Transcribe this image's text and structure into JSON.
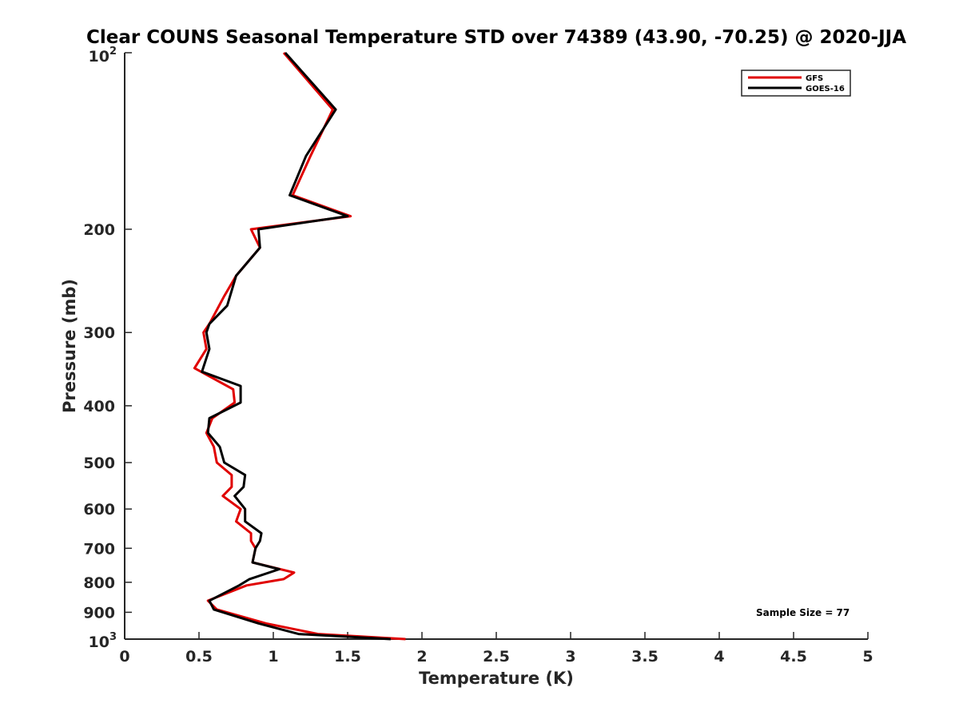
{
  "chart_data": {
    "type": "line",
    "title": "Clear COUNS Seasonal Temperature STD over 74389 (43.90, -70.25) @ 2020-JJA",
    "xlabel": "Temperature (K)",
    "ylabel": "Pressure (mb)",
    "xlim": [
      0,
      5
    ],
    "ylim": [
      100,
      1000
    ],
    "yscale": "log",
    "y_reversed": true,
    "x_ticks": [
      0,
      0.5,
      1,
      1.5,
      2,
      2.5,
      3,
      3.5,
      4,
      4.5,
      5
    ],
    "x_tick_labels": [
      "0",
      "0.5",
      "1",
      "1.5",
      "2",
      "2.5",
      "3",
      "3.5",
      "4",
      "4.5",
      "5"
    ],
    "y_ticks": [
      200,
      300,
      400,
      500,
      600,
      700,
      800,
      900
    ],
    "y_tick_labels": [
      "200",
      "300",
      "400",
      "500",
      "600",
      "700",
      "800",
      "900"
    ],
    "y_top_label": {
      "base": "10",
      "exp": "2"
    },
    "y_bottom_label": {
      "base": "10",
      "exp": "3"
    },
    "legend_position": "top-right",
    "annotation": "Sample Size = 77",
    "series": [
      {
        "name": "GFS",
        "color": "#e00000",
        "pressure": [
          100,
          125,
          150,
          175,
          190,
          200,
          215,
          240,
          260,
          290,
          300,
          320,
          345,
          375,
          395,
          420,
          445,
          470,
          500,
          525,
          550,
          570,
          600,
          630,
          660,
          680,
          700,
          740,
          770,
          790,
          810,
          860,
          890,
          940,
          980,
          1000
        ],
        "values": [
          1.07,
          1.4,
          1.25,
          1.13,
          1.52,
          0.85,
          0.91,
          0.75,
          0.67,
          0.57,
          0.53,
          0.55,
          0.47,
          0.73,
          0.74,
          0.59,
          0.55,
          0.6,
          0.62,
          0.72,
          0.72,
          0.66,
          0.78,
          0.75,
          0.85,
          0.85,
          0.88,
          0.86,
          1.14,
          1.07,
          0.82,
          0.56,
          0.62,
          0.95,
          1.3,
          1.89
        ]
      },
      {
        "name": "GOES-16",
        "color": "#000000",
        "pressure": [
          100,
          125,
          150,
          175,
          190,
          200,
          215,
          240,
          270,
          290,
          300,
          320,
          350,
          370,
          395,
          420,
          445,
          470,
          500,
          525,
          550,
          570,
          600,
          630,
          660,
          680,
          700,
          740,
          760,
          790,
          810,
          860,
          890,
          940,
          980,
          1000
        ],
        "values": [
          1.08,
          1.42,
          1.22,
          1.11,
          1.5,
          0.9,
          0.91,
          0.75,
          0.69,
          0.57,
          0.55,
          0.57,
          0.52,
          0.78,
          0.78,
          0.57,
          0.56,
          0.64,
          0.67,
          0.81,
          0.8,
          0.74,
          0.81,
          0.81,
          0.92,
          0.91,
          0.88,
          0.86,
          1.04,
          0.84,
          0.77,
          0.57,
          0.6,
          0.9,
          1.17,
          1.79
        ]
      }
    ]
  }
}
